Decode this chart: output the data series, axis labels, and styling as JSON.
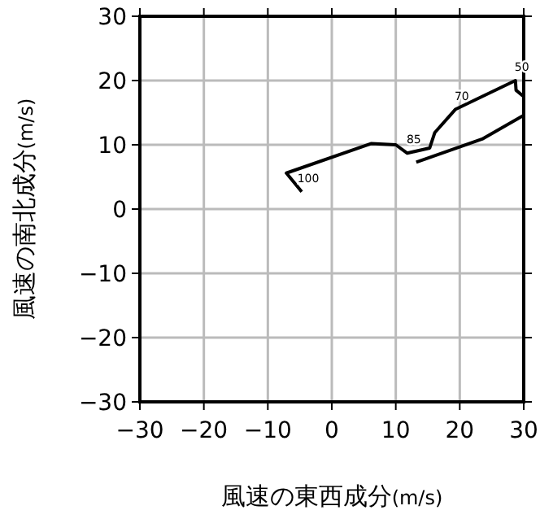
{
  "chart_data": {
    "type": "line",
    "xlabel": "風速の東西成分(m/s)",
    "ylabel": "風速の南北成分(m/s)",
    "x": [
      -4.7,
      -7.1,
      6.2,
      10.0,
      11.8,
      15.3,
      16.1,
      19.3,
      28.7,
      28.8,
      30.0,
      null,
      30.0,
      23.5,
      13.2
    ],
    "series": [
      {
        "color": "#000000",
        "values": [
          2.7,
          5.6,
          10.2,
          10.0,
          8.7,
          9.5,
          11.9,
          15.5,
          20.0,
          18.5,
          17.5,
          null,
          14.6,
          10.9,
          7.3
        ]
      }
    ],
    "annotations": [
      {
        "text": "100",
        "x": -4.7,
        "y": 2.7
      },
      {
        "text": "85",
        "x": 11.8,
        "y": 8.7
      },
      {
        "text": "70",
        "x": 19.3,
        "y": 15.5
      },
      {
        "text": "50",
        "x": 28.7,
        "y": 20.0
      }
    ],
    "xlim": [
      -30,
      30
    ],
    "ylim": [
      -30,
      30
    ],
    "xticks": [
      -30,
      -20,
      -10,
      0,
      10,
      20,
      30
    ],
    "yticks": [
      -30,
      -20,
      -10,
      0,
      10,
      20,
      30
    ],
    "grid": true,
    "line_style": "solid",
    "marker": "none"
  }
}
